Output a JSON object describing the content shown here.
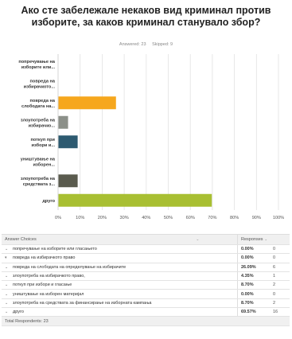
{
  "question": {
    "title": "Ако сте забележале некаков вид криминал против изборите, за каков криминал станувало збор?",
    "answered": "Answered: 23",
    "skipped": "Skipped: 9"
  },
  "chart_data": {
    "type": "bar",
    "orientation": "horizontal",
    "categories": [
      "попречување на изборите или...",
      "повреда на избирачкото...",
      "повреда на слободата на...",
      "злоупотреба на избирачко...",
      "поткуп при избори и...",
      "уништување на изборен...",
      "злоупотреба на средствата з...",
      "друго"
    ],
    "values": [
      0.0,
      0.0,
      26.09,
      4.35,
      8.7,
      0.0,
      8.7,
      69.57
    ],
    "colors": [
      "#4e9cd1",
      "#2e5b87",
      "#f6a71d",
      "#8c9089",
      "#2d5a70",
      "#7a7a7a",
      "#5a5b4e",
      "#a8bf32"
    ],
    "x_ticks": [
      "0%",
      "10%",
      "20%",
      "30%",
      "40%",
      "50%",
      "60%",
      "70%",
      "80%",
      "90%",
      "100%"
    ],
    "xlim": [
      0,
      100
    ],
    "grid": true
  },
  "table": {
    "headers": {
      "choice": "Answer Choices",
      "responses": "Responses"
    },
    "rows": [
      {
        "label": "попречување на изборите или гласањето",
        "pct": "0.00%",
        "count": "0"
      },
      {
        "label": "повреда на избирачкото право",
        "pct": "0.00%",
        "count": "0"
      },
      {
        "label": "повреда на слободата на определување на избирачите",
        "pct": "26.09%",
        "count": "6"
      },
      {
        "label": "злоупотреба на избирачкото право,",
        "pct": "4.35%",
        "count": "1"
      },
      {
        "label": "поткуп при избори и гласање",
        "pct": "8.70%",
        "count": "2"
      },
      {
        "label": "уништување на изборен материјал",
        "pct": "0.00%",
        "count": "0"
      },
      {
        "label": "злоупотреба на средствата за финансирање на изборната кампања",
        "pct": "8.70%",
        "count": "2"
      },
      {
        "label": "друго",
        "pct": "69.57%",
        "count": "16"
      }
    ],
    "total": "Total Respondents: 23"
  }
}
